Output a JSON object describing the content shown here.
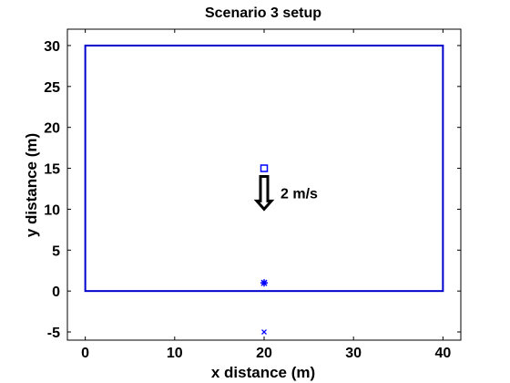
{
  "chart_data": {
    "type": "scatter",
    "title": "Scenario 3 setup",
    "xlabel": "x distance (m)",
    "ylabel": "y distance (m)",
    "xlim": [
      -2,
      42
    ],
    "ylim": [
      -6,
      32
    ],
    "xticks": [
      0,
      10,
      20,
      30,
      40
    ],
    "yticks": [
      -5,
      0,
      5,
      10,
      15,
      20,
      25,
      30
    ],
    "grid": false,
    "colors": {
      "room": "#0000cc",
      "markers": "#0000ff",
      "arrow": "#000000"
    },
    "room_rectangle": {
      "x0": 0,
      "y0": 0,
      "x1": 40,
      "y1": 30
    },
    "points": [
      {
        "marker": "square",
        "x": 20,
        "y": 15
      },
      {
        "marker": "star",
        "x": 20,
        "y": 1
      },
      {
        "marker": "x",
        "x": 20,
        "y": -5
      }
    ],
    "velocity_arrow": {
      "x": 20,
      "y_start": 14,
      "y_end": 10
    },
    "annotation": "2 m/s"
  }
}
